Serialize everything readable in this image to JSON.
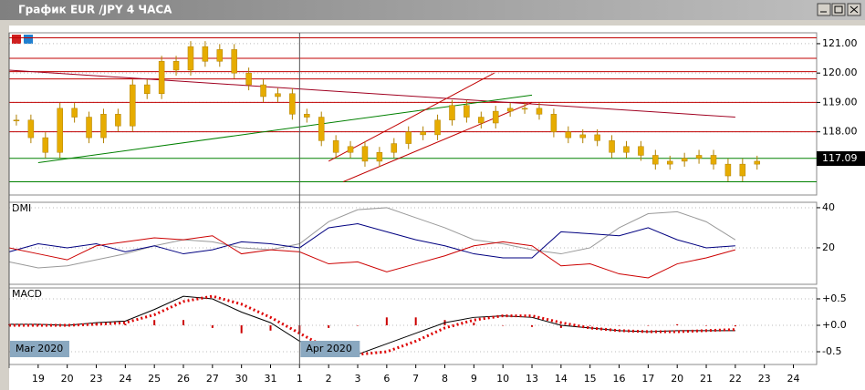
{
  "window": {
    "title": "График EUR /JPY  4 ЧАСА"
  },
  "chart_data": [
    {
      "type": "candlestick",
      "xlim": [
        -1,
        26.8
      ],
      "ylim": [
        115.85,
        121.37
      ],
      "yticks": [
        {
          "value": 121,
          "label": "121.00"
        },
        {
          "value": 120,
          "label": "120.00"
        },
        {
          "value": 119,
          "label": "119.00"
        },
        {
          "value": 118,
          "label": "118.00"
        }
      ],
      "grid": true,
      "color": "#e6ac00",
      "last_price": 117.09,
      "x": [
        -0.75,
        -0.25,
        0.25,
        0.75,
        1.25,
        1.75,
        2.25,
        2.75,
        3.25,
        3.75,
        4.25,
        4.75,
        5.25,
        5.75,
        6.25,
        6.75,
        7.25,
        7.75,
        8.25,
        8.75,
        9.25,
        9.75,
        10.25,
        10.75,
        11.25,
        11.75,
        12.25,
        12.75,
        13.25,
        13.75,
        14.25,
        14.75,
        15.25,
        15.75,
        16.25,
        16.75,
        17.25,
        17.75,
        18.25,
        18.75,
        19.25,
        19.75,
        20.25,
        20.75,
        21.25,
        21.75,
        22.25,
        22.75,
        23.25,
        23.75,
        24.25,
        24.75
      ],
      "values": [
        118.4,
        117.8,
        117.3,
        118.8,
        118.5,
        117.8,
        118.6,
        118.2,
        119.6,
        119.3,
        120.4,
        120.1,
        120.9,
        120.4,
        120.8,
        120.0,
        119.6,
        119.2,
        119.3,
        118.6,
        118.5,
        117.7,
        117.3,
        117.5,
        117.0,
        117.3,
        117.6,
        118.0,
        117.9,
        118.4,
        118.9,
        118.5,
        118.3,
        118.7,
        118.8,
        118.8,
        118.6,
        118.0,
        117.8,
        117.9,
        117.7,
        117.3,
        117.5,
        117.2,
        116.9,
        117.0,
        117.1,
        117.2,
        116.9,
        116.5,
        116.9,
        117.0
      ],
      "levels": [
        {
          "value": 121.2,
          "color": "#c00000"
        },
        {
          "value": 120.5,
          "color": "#c00000"
        },
        {
          "value": 120.05,
          "color": "#c00000"
        },
        {
          "value": 119.8,
          "color": "#c00000"
        },
        {
          "value": 119.0,
          "color": "#c00000"
        },
        {
          "value": 118.0,
          "color": "#c00000"
        },
        {
          "value": 117.1,
          "color": "#008000"
        },
        {
          "value": 116.3,
          "color": "#008000"
        }
      ],
      "trend_lines": [
        {
          "color": "#a00020",
          "x": [
            -1,
            24
          ],
          "y": [
            120.1,
            118.5
          ]
        },
        {
          "color": "#008000",
          "x": [
            0,
            17
          ],
          "y": [
            116.95,
            119.25
          ]
        },
        {
          "color": "#c00000",
          "x": [
            10,
            15.7
          ],
          "y": [
            117.0,
            120.0
          ]
        },
        {
          "color": "#c00000",
          "x": [
            10.5,
            17
          ],
          "y": [
            116.3,
            119.0
          ]
        }
      ]
    },
    {
      "type": "line",
      "title": "DMI",
      "xlim": [
        -1,
        26.8
      ],
      "ylim": [
        1.8,
        42.7
      ],
      "yticks": [
        40,
        20
      ],
      "grid": true,
      "x": [
        -1,
        0,
        1,
        2,
        3,
        4,
        5,
        6,
        7,
        8,
        9,
        10,
        11,
        12,
        13,
        14,
        15,
        16,
        17,
        18,
        19,
        20,
        21,
        22,
        23,
        24
      ],
      "series": [
        {
          "color": "#999999",
          "style": "line",
          "values": [
            13,
            10,
            11,
            14,
            17,
            21,
            24,
            23,
            20,
            19,
            22,
            33,
            39,
            40,
            35,
            30,
            24,
            22,
            19,
            17,
            20,
            30,
            37,
            38,
            33,
            24
          ]
        },
        {
          "color": "#000080",
          "style": "line",
          "values": [
            18,
            22,
            20,
            22,
            18,
            21,
            17,
            19,
            23,
            22,
            20,
            30,
            32,
            28,
            24,
            21,
            17,
            15,
            15,
            28,
            27,
            26,
            30,
            24,
            20,
            21
          ]
        },
        {
          "color": "#cc0000",
          "style": "line",
          "values": [
            20,
            17,
            14,
            21,
            23,
            25,
            24,
            26,
            17,
            19,
            18,
            12,
            13,
            8,
            12,
            16,
            21,
            23,
            21,
            11,
            12,
            7,
            5,
            12,
            15,
            19
          ]
        }
      ]
    },
    {
      "type": "line",
      "title": "MACD",
      "xlim": [
        -1,
        26.8
      ],
      "ylim": [
        -0.741,
        0.707
      ],
      "yticks": [
        {
          "value": 0.5,
          "label": "+0.5"
        },
        {
          "value": 0,
          "label": "+0.0"
        },
        {
          "value": -0.5,
          "label": "-0.5"
        }
      ],
      "grid": true,
      "xticks": [
        {
          "value": 0,
          "label": "19"
        },
        {
          "value": 1,
          "label": "20"
        },
        {
          "value": 2,
          "label": "23"
        },
        {
          "value": 3,
          "label": "24"
        },
        {
          "value": 4,
          "label": "25"
        },
        {
          "value": 5,
          "label": "26"
        },
        {
          "value": 6,
          "label": "27"
        },
        {
          "value": 7,
          "label": "30"
        },
        {
          "value": 8,
          "label": "31"
        },
        {
          "value": 9,
          "label": "1"
        },
        {
          "value": 10,
          "label": "2"
        },
        {
          "value": 11,
          "label": "3"
        },
        {
          "value": 12,
          "label": "6"
        },
        {
          "value": 13,
          "label": "7"
        },
        {
          "value": 14,
          "label": "8"
        },
        {
          "value": 15,
          "label": "9"
        },
        {
          "value": 16,
          "label": "10"
        },
        {
          "value": 17,
          "label": "13"
        },
        {
          "value": 18,
          "label": "14"
        },
        {
          "value": 19,
          "label": "15"
        },
        {
          "value": 20,
          "label": "16"
        },
        {
          "value": 21,
          "label": "17"
        },
        {
          "value": 22,
          "label": "20"
        },
        {
          "value": 23,
          "label": "21"
        },
        {
          "value": 24,
          "label": "22"
        },
        {
          "value": 25,
          "label": "23"
        },
        {
          "value": 26,
          "label": "24"
        }
      ],
      "period_markers": [
        {
          "value": -1,
          "label": "Mar 2020"
        },
        {
          "value": 9,
          "label": "Apr 2020"
        }
      ],
      "x": [
        -1,
        0,
        1,
        2,
        3,
        4,
        5,
        6,
        7,
        8,
        9,
        10,
        11,
        12,
        13,
        14,
        15,
        16,
        17,
        18,
        19,
        20,
        21,
        22,
        23,
        24
      ],
      "series": [
        {
          "color": "#cc0000",
          "style": "bars",
          "values": [
            0.02,
            0.02,
            0.0,
            0.03,
            0.03,
            0.1,
            0.1,
            -0.05,
            -0.15,
            -0.1,
            -0.15,
            -0.05,
            0.0,
            0.15,
            0.15,
            0.1,
            0.05,
            0.0,
            -0.03,
            -0.05,
            0.0,
            0.0,
            0.0,
            0.02,
            0.0,
            -0.02
          ]
        },
        {
          "color": "#000000",
          "style": "line",
          "values": [
            0.02,
            0.02,
            0.0,
            0.05,
            0.08,
            0.3,
            0.55,
            0.5,
            0.25,
            0.05,
            -0.3,
            -0.5,
            -0.55,
            -0.35,
            -0.15,
            0.05,
            0.15,
            0.18,
            0.15,
            0.0,
            -0.05,
            -0.1,
            -0.12,
            -0.1,
            -0.1,
            -0.1
          ]
        },
        {
          "color": "#dd0000",
          "style": "dotted",
          "values": [
            0.0,
            0.0,
            0.0,
            0.02,
            0.05,
            0.2,
            0.45,
            0.55,
            0.4,
            0.15,
            -0.15,
            -0.45,
            -0.55,
            -0.5,
            -0.3,
            -0.05,
            0.1,
            0.18,
            0.18,
            0.05,
            -0.05,
            -0.1,
            -0.12,
            -0.12,
            -0.1,
            -0.08
          ]
        }
      ]
    }
  ]
}
